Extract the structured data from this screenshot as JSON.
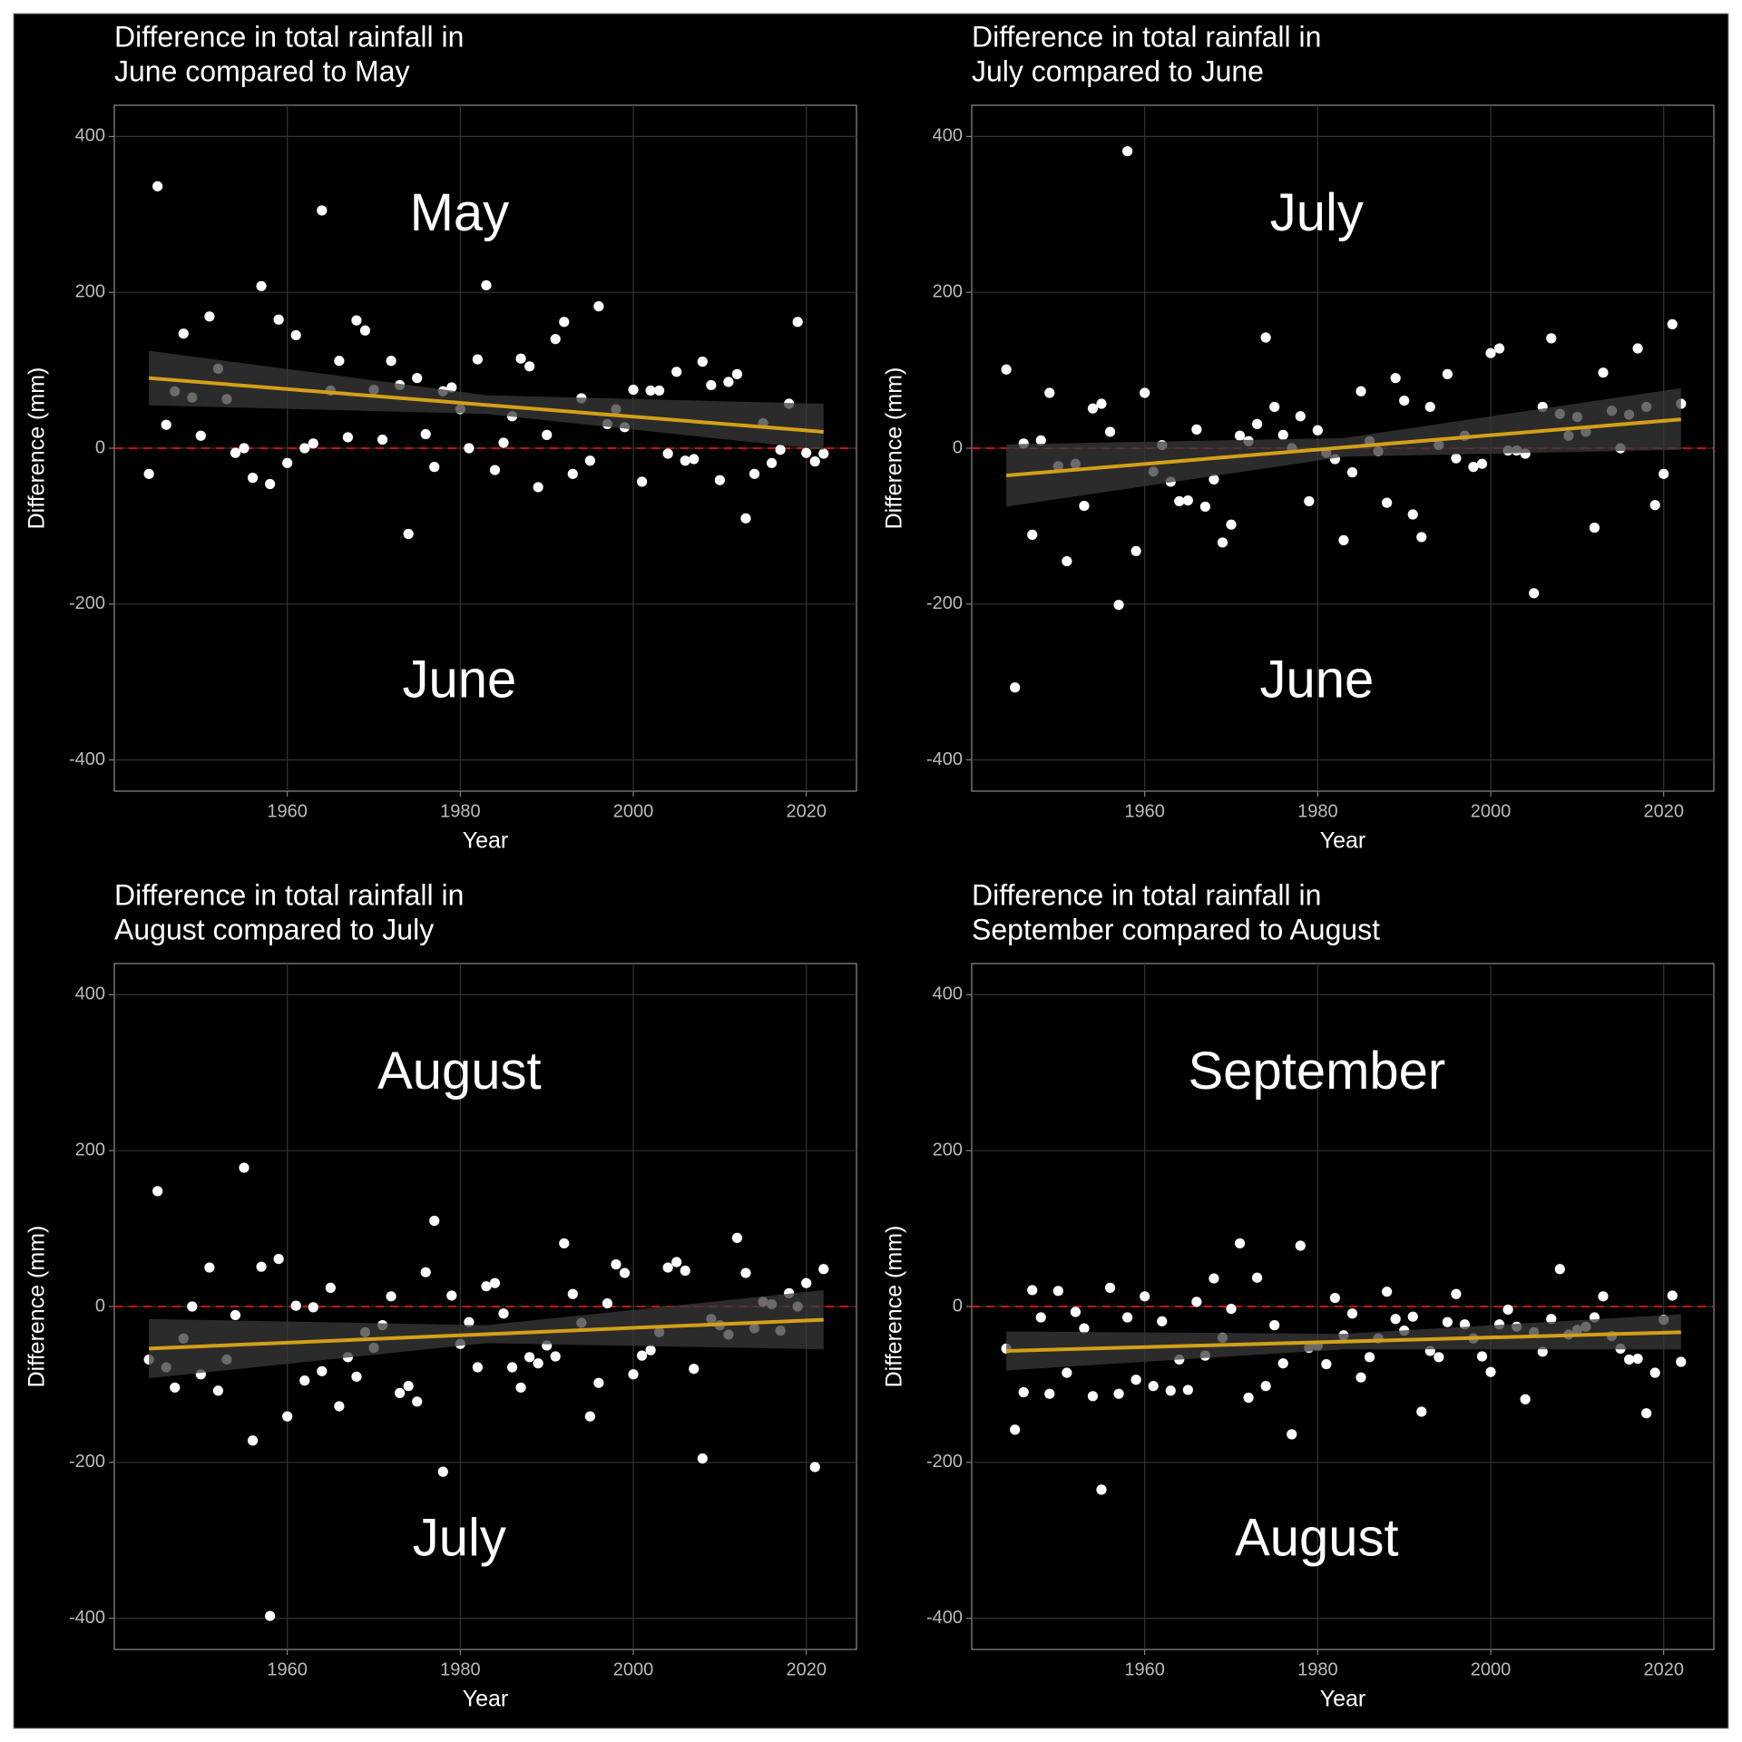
{
  "chart_data": [
    {
      "type": "scatter",
      "title": [
        "Difference in total rainfall in",
        "June compared to May"
      ],
      "x_label": "Year",
      "y_label": "Difference (mm)",
      "annotations": [
        "May",
        "June"
      ],
      "xlim": [
        1940,
        2025.8
      ],
      "ylim": [
        -440,
        440
      ],
      "xticks": [
        1960,
        1980,
        2000,
        2020
      ],
      "yticks": [
        -400,
        -200,
        0,
        200,
        400
      ],
      "grid": true,
      "point_color": "#ffffff",
      "x": [
        1944,
        1945,
        1946,
        1947,
        1948,
        1949,
        1950,
        1951,
        1952,
        1953,
        1954,
        1955,
        1956,
        1957,
        1958,
        1959,
        1960,
        1961,
        1962,
        1963,
        1964,
        1965,
        1966,
        1967,
        1968,
        1969,
        1970,
        1971,
        1972,
        1973,
        1974,
        1975,
        1976,
        1977,
        1978,
        1979,
        1980,
        1981,
        1982,
        1983,
        1984,
        1985,
        1986,
        1987,
        1988,
        1989,
        1990,
        1991,
        1992,
        1993,
        1994,
        1995,
        1996,
        1997,
        1998,
        1999,
        2000,
        2001,
        2002,
        2003,
        2004,
        2005,
        2006,
        2007,
        2008,
        2009,
        2010,
        2011,
        2012,
        2013,
        2014,
        2015,
        2016,
        2017,
        2018,
        2019,
        2020,
        2021,
        2022
      ],
      "values": [
        -33,
        336,
        30,
        73,
        147,
        65,
        16,
        169,
        102,
        63,
        -6,
        0,
        -38,
        208,
        -46,
        165,
        -19,
        145,
        0,
        6,
        305,
        74,
        112,
        14,
        164,
        151,
        75,
        11,
        112,
        81,
        -110,
        90,
        18,
        -24,
        73,
        78,
        50,
        0,
        114,
        209,
        -28,
        7,
        41,
        115,
        105,
        -50,
        17,
        140,
        162,
        -33,
        64,
        -16,
        182,
        31,
        50,
        27,
        75,
        -43,
        74,
        74,
        -7,
        98,
        -16,
        -14,
        111,
        81,
        -41,
        85,
        95,
        -90,
        -33,
        32,
        -19,
        -2,
        57,
        162,
        -6,
        -17,
        -7
      ],
      "trend": {
        "x": [
          1944,
          2022
        ],
        "values": [
          90,
          21
        ],
        "color": "#d4a017"
      },
      "band": {
        "x": [
          1944,
          1983,
          2022
        ],
        "lower": [
          55,
          44,
          -2
        ],
        "upper": [
          125,
          68,
          57
        ],
        "color": "#3a3a3a"
      },
      "reference_line": {
        "value": 0,
        "color": "#cc1111"
      }
    },
    {
      "type": "scatter",
      "title": [
        "Difference in total rainfall in",
        "July compared to June"
      ],
      "x_label": "Year",
      "y_label": "Difference (mm)",
      "annotations": [
        "July",
        "June"
      ],
      "xlim": [
        1940,
        2025.8
      ],
      "ylim": [
        -440,
        440
      ],
      "xticks": [
        1960,
        1980,
        2000,
        2020
      ],
      "yticks": [
        -400,
        -200,
        0,
        200,
        400
      ],
      "grid": true,
      "point_color": "#ffffff",
      "x": [
        1944,
        1945,
        1946,
        1947,
        1948,
        1949,
        1950,
        1951,
        1952,
        1953,
        1954,
        1955,
        1956,
        1957,
        1958,
        1959,
        1960,
        1961,
        1962,
        1963,
        1964,
        1965,
        1966,
        1967,
        1968,
        1969,
        1970,
        1971,
        1972,
        1973,
        1974,
        1975,
        1976,
        1977,
        1978,
        1979,
        1980,
        1981,
        1982,
        1983,
        1984,
        1985,
        1986,
        1987,
        1988,
        1989,
        1990,
        1991,
        1992,
        1993,
        1994,
        1995,
        1996,
        1997,
        1998,
        1999,
        2000,
        2001,
        2002,
        2003,
        2004,
        2005,
        2006,
        2007,
        2008,
        2009,
        2010,
        2011,
        2012,
        2013,
        2014,
        2015,
        2016,
        2017,
        2018,
        2019,
        2020,
        2021,
        2022
      ],
      "values": [
        101,
        -307,
        6,
        -111,
        10,
        71,
        -23,
        -145,
        -20,
        -74,
        51,
        57,
        21,
        -201,
        381,
        -132,
        71,
        -30,
        4,
        -43,
        -68,
        -67,
        24,
        -75,
        -40,
        -121,
        -98,
        16,
        9,
        31,
        142,
        53,
        17,
        0,
        41,
        -68,
        23,
        -6,
        -14,
        -118,
        -31,
        73,
        9,
        -4,
        -70,
        90,
        61,
        -85,
        -114,
        53,
        4,
        95,
        -13,
        16,
        -24,
        -20,
        122,
        128,
        -3,
        -3,
        -7,
        -186,
        53,
        141,
        44,
        16,
        40,
        21,
        -102,
        97,
        48,
        0,
        43,
        128,
        53,
        -73,
        -33,
        159,
        57
      ],
      "trend": {
        "x": [
          1944,
          2022
        ],
        "values": [
          -35,
          37
        ],
        "color": "#d4a017"
      },
      "band": {
        "x": [
          1944,
          1983,
          2022
        ],
        "lower": [
          -75,
          -11,
          -2
        ],
        "upper": [
          5,
          13,
          77
        ],
        "color": "#3a3a3a"
      },
      "reference_line": {
        "value": 0,
        "color": "#cc1111"
      }
    },
    {
      "type": "scatter",
      "title": [
        "Difference in total rainfall in",
        "August compared to July"
      ],
      "x_label": "Year",
      "y_label": "Difference (mm)",
      "annotations": [
        "August",
        "July"
      ],
      "xlim": [
        1940,
        2025.8
      ],
      "ylim": [
        -440,
        440
      ],
      "xticks": [
        1960,
        1980,
        2000,
        2020
      ],
      "yticks": [
        -400,
        -200,
        0,
        200,
        400
      ],
      "grid": true,
      "point_color": "#ffffff",
      "x": [
        1944,
        1945,
        1946,
        1947,
        1948,
        1949,
        1950,
        1951,
        1952,
        1953,
        1954,
        1955,
        1956,
        1957,
        1958,
        1959,
        1960,
        1961,
        1962,
        1963,
        1964,
        1965,
        1966,
        1967,
        1968,
        1969,
        1970,
        1971,
        1972,
        1973,
        1974,
        1975,
        1976,
        1977,
        1978,
        1979,
        1980,
        1981,
        1982,
        1983,
        1984,
        1985,
        1986,
        1987,
        1988,
        1989,
        1990,
        1991,
        1992,
        1993,
        1994,
        1995,
        1996,
        1997,
        1998,
        1999,
        2000,
        2001,
        2002,
        2003,
        2004,
        2005,
        2006,
        2007,
        2008,
        2009,
        2010,
        2011,
        2012,
        2013,
        2014,
        2015,
        2016,
        2017,
        2018,
        2019,
        2020,
        2021,
        2022
      ],
      "values": [
        -68,
        148,
        -78,
        -104,
        -41,
        0,
        -87,
        50,
        -108,
        -68,
        -11,
        178,
        -172,
        51,
        -397,
        61,
        -141,
        1,
        -95,
        -1,
        -83,
        24,
        -128,
        -65,
        -90,
        -33,
        -53,
        -24,
        13,
        -111,
        -102,
        -122,
        44,
        110,
        -212,
        14,
        -48,
        -20,
        -78,
        26,
        30,
        -9,
        -78,
        -104,
        -65,
        -73,
        -50,
        -64,
        81,
        16,
        -21,
        -141,
        -98,
        4,
        54,
        43,
        -87,
        -63,
        -56,
        -33,
        50,
        57,
        46,
        -80,
        -195,
        -16,
        -24,
        -36,
        88,
        43,
        -28,
        6,
        3,
        -31,
        17,
        0,
        30,
        -206,
        48
      ],
      "trend": {
        "x": [
          1944,
          2022
        ],
        "values": [
          -54,
          -17
        ],
        "color": "#d4a017"
      },
      "band": {
        "x": [
          1944,
          1983,
          2022
        ],
        "lower": [
          -92,
          -47,
          -55
        ],
        "upper": [
          -16,
          -24,
          21
        ],
        "color": "#3a3a3a"
      },
      "reference_line": {
        "value": 0,
        "color": "#cc1111"
      }
    },
    {
      "type": "scatter",
      "title": [
        "Difference in total rainfall in",
        "September compared to August"
      ],
      "x_label": "Year",
      "y_label": "Difference (mm)",
      "annotations": [
        "September",
        "August"
      ],
      "xlim": [
        1940,
        2025.8
      ],
      "ylim": [
        -440,
        440
      ],
      "xticks": [
        1960,
        1980,
        2000,
        2020
      ],
      "yticks": [
        -400,
        -200,
        0,
        200,
        400
      ],
      "grid": true,
      "point_color": "#ffffff",
      "x": [
        1944,
        1945,
        1946,
        1947,
        1948,
        1949,
        1950,
        1951,
        1952,
        1953,
        1954,
        1955,
        1956,
        1957,
        1958,
        1959,
        1960,
        1961,
        1962,
        1963,
        1964,
        1965,
        1966,
        1967,
        1968,
        1969,
        1970,
        1971,
        1972,
        1973,
        1974,
        1975,
        1976,
        1977,
        1978,
        1979,
        1980,
        1981,
        1982,
        1983,
        1984,
        1985,
        1986,
        1987,
        1988,
        1989,
        1990,
        1991,
        1992,
        1993,
        1994,
        1995,
        1996,
        1997,
        1998,
        1999,
        2000,
        2001,
        2002,
        2003,
        2004,
        2005,
        2006,
        2007,
        2008,
        2009,
        2010,
        2011,
        2012,
        2013,
        2014,
        2015,
        2016,
        2017,
        2018,
        2019,
        2020,
        2021,
        2022
      ],
      "values": [
        -54,
        -158,
        -110,
        21,
        -14,
        -112,
        20,
        -85,
        -7,
        -28,
        -115,
        -235,
        24,
        -112,
        -14,
        -94,
        13,
        -102,
        -19,
        -108,
        -68,
        -107,
        6,
        -63,
        36,
        -40,
        -3,
        81,
        -117,
        37,
        -102,
        -24,
        -73,
        -164,
        78,
        -53,
        -50,
        -74,
        11,
        -37,
        -9,
        -91,
        -65,
        -41,
        19,
        -16,
        -31,
        -13,
        -135,
        -57,
        -65,
        -20,
        16,
        -23,
        -41,
        -64,
        -84,
        -23,
        -4,
        -26,
        -119,
        -33,
        -58,
        -16,
        48,
        -36,
        -30,
        -26,
        -14,
        13,
        -38,
        -54,
        -68,
        -67,
        -137,
        -85,
        -17,
        14,
        -71
      ],
      "trend": {
        "x": [
          1944,
          2022
        ],
        "values": [
          -57,
          -33
        ],
        "color": "#d4a017"
      },
      "band": {
        "x": [
          1944,
          1983,
          2022
        ],
        "lower": [
          -82,
          -55,
          -55
        ],
        "upper": [
          -32,
          -35,
          -10
        ],
        "color": "#3a3a3a"
      },
      "reference_line": {
        "value": 0,
        "color": "#cc1111"
      }
    }
  ]
}
